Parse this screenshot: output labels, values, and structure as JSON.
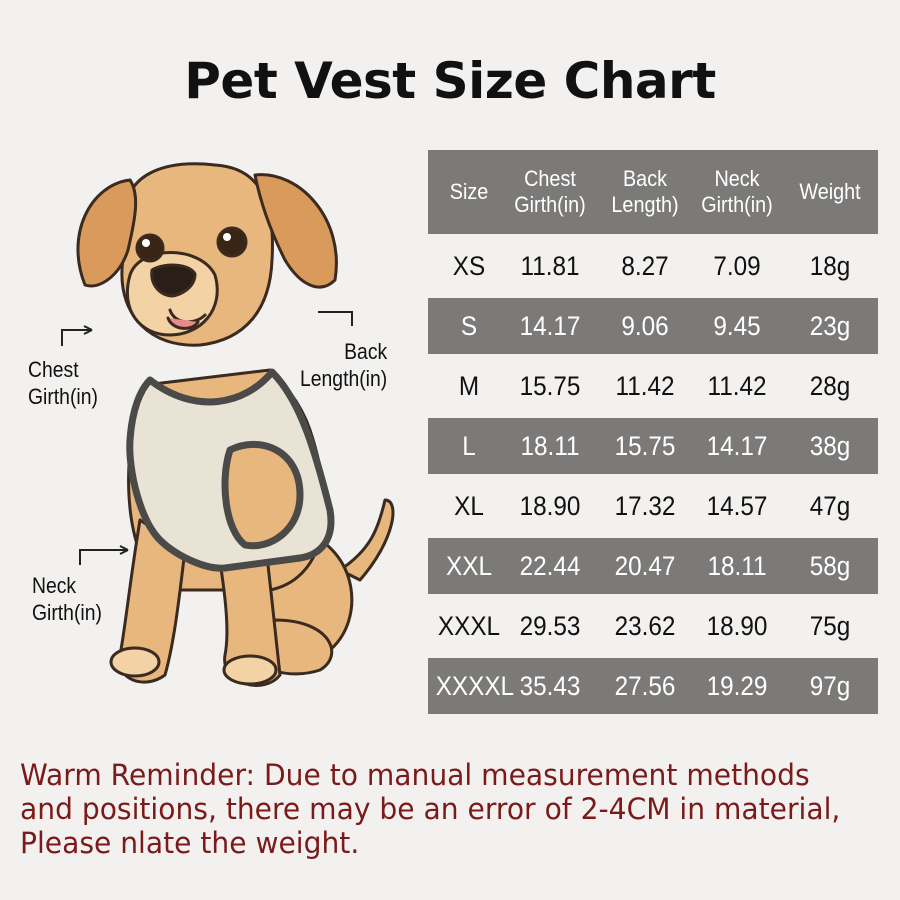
{
  "title": "Pet Vest Size Chart",
  "callouts": {
    "chest": "Chest\nGirth(in)",
    "back": "Back\nLength(in)",
    "neck": "Neck\nGirth(in)"
  },
  "table": {
    "headers": [
      "Size",
      "Chest\nGirth(in)",
      "Back\nLength)",
      "Neck\nGirth(in)",
      "Weight"
    ],
    "rows": [
      [
        "XS",
        "11.81",
        "8.27",
        "7.09",
        "18g"
      ],
      [
        "S",
        "14.17",
        "9.06",
        "9.45",
        "23g"
      ],
      [
        "M",
        "15.75",
        "11.42",
        "11.42",
        "28g"
      ],
      [
        "L",
        "18.11",
        "15.75",
        "14.17",
        "38g"
      ],
      [
        "XL",
        "18.90",
        "17.32",
        "14.57",
        "47g"
      ],
      [
        "XXL",
        "22.44",
        "20.47",
        "18.11",
        "58g"
      ],
      [
        "XXXL",
        "29.53",
        "23.62",
        "18.90",
        "75g"
      ],
      [
        "XXXXL",
        "35.43",
        "27.56",
        "19.29",
        "97g"
      ]
    ]
  },
  "reminder": "Warm Reminder: Due to manual measurement methods and positions, there may be an error of 2-4CM in material, Please nlate the weight.",
  "colors": {
    "background": "#f2f1ef",
    "table_shade": "#7b7a78",
    "reminder_text": "#7a1a1a",
    "dog_fur": "#e7b77d",
    "vest": "#e9e3d6"
  }
}
